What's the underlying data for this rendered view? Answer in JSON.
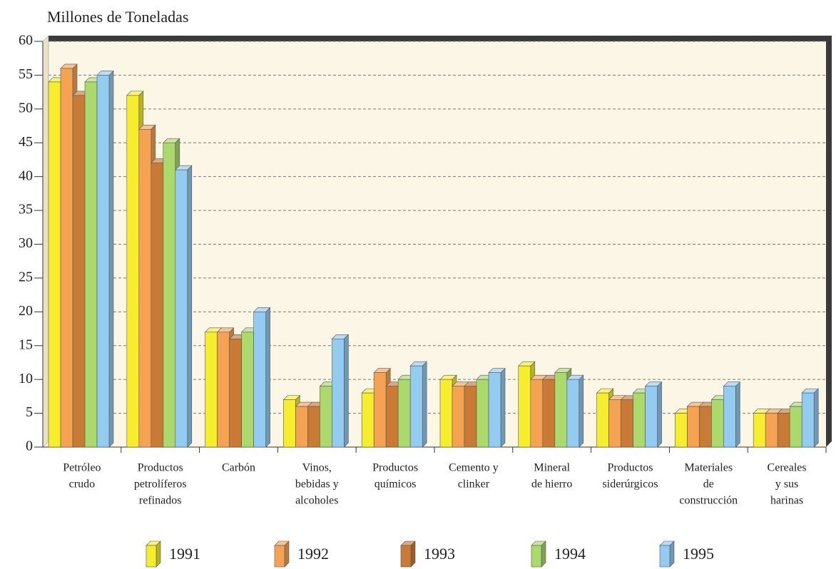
{
  "chart_data": {
    "type": "bar3d",
    "title": "Millones de Toneladas",
    "categories": [
      [
        "Petróleo",
        "crudo"
      ],
      [
        "Productos",
        "petrolíferos",
        "refinados"
      ],
      [
        "Carbón"
      ],
      [
        "Vinos,",
        "bebidas y",
        "alcoholes"
      ],
      [
        "Productos",
        "químicos"
      ],
      [
        "Cemento y",
        "clinker"
      ],
      [
        "Mineral",
        "de hierro"
      ],
      [
        "Productos",
        "siderúrgicos"
      ],
      [
        "Materiales",
        "de",
        "construcción"
      ],
      [
        "Cereales",
        "y sus",
        "harinas"
      ]
    ],
    "series": [
      {
        "name": "1991",
        "color": "#f6ee2c",
        "values": [
          54,
          52,
          17,
          7,
          8,
          10,
          12,
          8,
          5,
          5
        ]
      },
      {
        "name": "1992",
        "color": "#f5a352",
        "values": [
          56,
          47,
          17,
          6,
          11,
          9,
          10,
          7,
          6,
          5
        ]
      },
      {
        "name": "1993",
        "color": "#c97b36",
        "values": [
          52,
          42,
          16,
          6,
          9,
          9,
          10,
          7,
          6,
          5
        ]
      },
      {
        "name": "1994",
        "color": "#abd96c",
        "values": [
          54,
          45,
          17,
          9,
          10,
          10,
          11,
          8,
          7,
          6
        ]
      },
      {
        "name": "1995",
        "color": "#93cbf1",
        "values": [
          55,
          41,
          20,
          16,
          12,
          11,
          10,
          9,
          9,
          8
        ]
      }
    ],
    "ylim": [
      0,
      60
    ],
    "yticks": [
      0,
      5,
      10,
      15,
      20,
      25,
      30,
      35,
      40,
      45,
      50,
      55,
      60
    ],
    "grid": true
  }
}
